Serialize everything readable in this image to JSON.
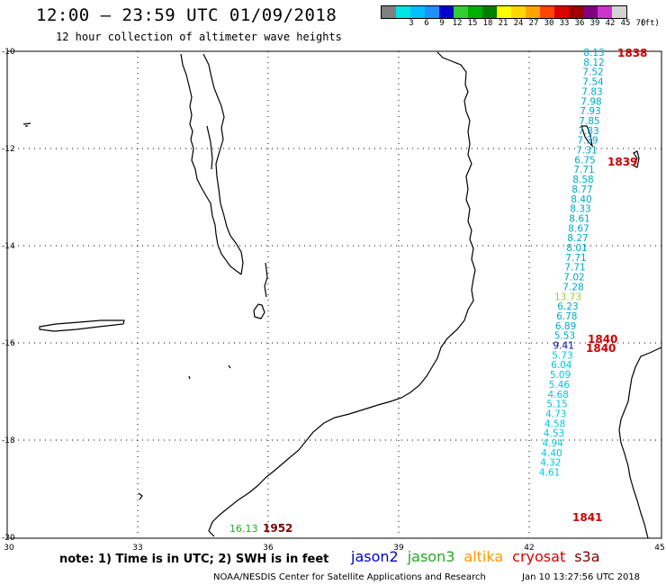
{
  "header": {
    "title": "12:00 – 23:59 UTC 01/09/2018",
    "subtitle": "12 hour collection of altimeter wave heights"
  },
  "legend": {
    "unit": "(ft)",
    "swatches": [
      {
        "label": "",
        "color": "#808080"
      },
      {
        "label": "3",
        "color": "#00e5e5"
      },
      {
        "label": "6",
        "color": "#00bfff"
      },
      {
        "label": "9",
        "color": "#1e90ff"
      },
      {
        "label": "12",
        "color": "#0000cd"
      },
      {
        "label": "15",
        "color": "#32cd32"
      },
      {
        "label": "18",
        "color": "#00b000"
      },
      {
        "label": "21",
        "color": "#008000"
      },
      {
        "label": "24",
        "color": "#ffff00"
      },
      {
        "label": "27",
        "color": "#ffd700"
      },
      {
        "label": "30",
        "color": "#ffa500"
      },
      {
        "label": "33",
        "color": "#ff4500"
      },
      {
        "label": "36",
        "color": "#dd0000"
      },
      {
        "label": "39",
        "color": "#a00000"
      },
      {
        "label": "42",
        "color": "#800080"
      },
      {
        "label": "45",
        "color": "#cc33cc"
      },
      {
        "label": "70",
        "color": "#d3d3d3"
      }
    ]
  },
  "axes": {
    "lat_labels": [
      "-10",
      "-12",
      "-14",
      "-16",
      "-18",
      "-20"
    ],
    "lon_labels": [
      "30",
      "33",
      "36",
      "39",
      "42",
      "45"
    ]
  },
  "tracks": [
    {
      "color": "#00a8c8",
      "values": [
        "8.13",
        "8.12",
        "7.52",
        "7.54",
        "7.83",
        "7.98",
        "7.93",
        "7.85",
        "7.83",
        "7.39",
        "7.31",
        "6.75",
        "7.71",
        "8.58",
        "8.77",
        "8.40",
        "8.33",
        "8.61",
        "8.67",
        "8.27",
        "8.01",
        "7.71",
        "7.71",
        "7.02",
        "7.28"
      ]
    },
    {
      "color": "#99cc33",
      "values": [
        "13.73"
      ]
    },
    {
      "color": "#00a8c8",
      "values": [
        "6.23",
        "6.78",
        "6.89",
        "5.53"
      ]
    },
    {
      "color": "#0000aa",
      "values": [
        "9.41"
      ]
    },
    {
      "color": "#00c8e0",
      "values": [
        "5.73",
        "6.04",
        "5.09",
        "5.46",
        "4.68",
        "5.15",
        "4.73",
        "4.58",
        "4.53",
        "4.94",
        "4.40",
        "4.32",
        "4.61"
      ]
    }
  ],
  "pass_labels": [
    {
      "text": "1838",
      "color": "#cc0000"
    },
    {
      "text": "1839",
      "color": "#cc0000"
    },
    {
      "text": "1840",
      "color": "#cc0000"
    },
    {
      "text": "1840",
      "color": "#cc0000"
    },
    {
      "text": "1841",
      "color": "#cc0000"
    },
    {
      "text": "1952",
      "color": "#800000"
    }
  ],
  "sw_reading": {
    "value": "16.13",
    "color": "#22aa22"
  },
  "footer": {
    "note": "note: 1) Time is in UTC; 2) SWH is in feet",
    "satellites": [
      {
        "name": "jason2",
        "color": "#0000cc"
      },
      {
        "name": "jason3",
        "color": "#22aa22"
      },
      {
        "name": "altika",
        "color": "#ff9900"
      },
      {
        "name": "cryosat",
        "color": "#dd0000"
      },
      {
        "name": "s3a",
        "color": "#800000"
      }
    ],
    "credit": "NOAA/NESDIS Center for Satellite Applications and Research",
    "timestamp": "Jan 10 13:27:56 UTC 2018"
  }
}
